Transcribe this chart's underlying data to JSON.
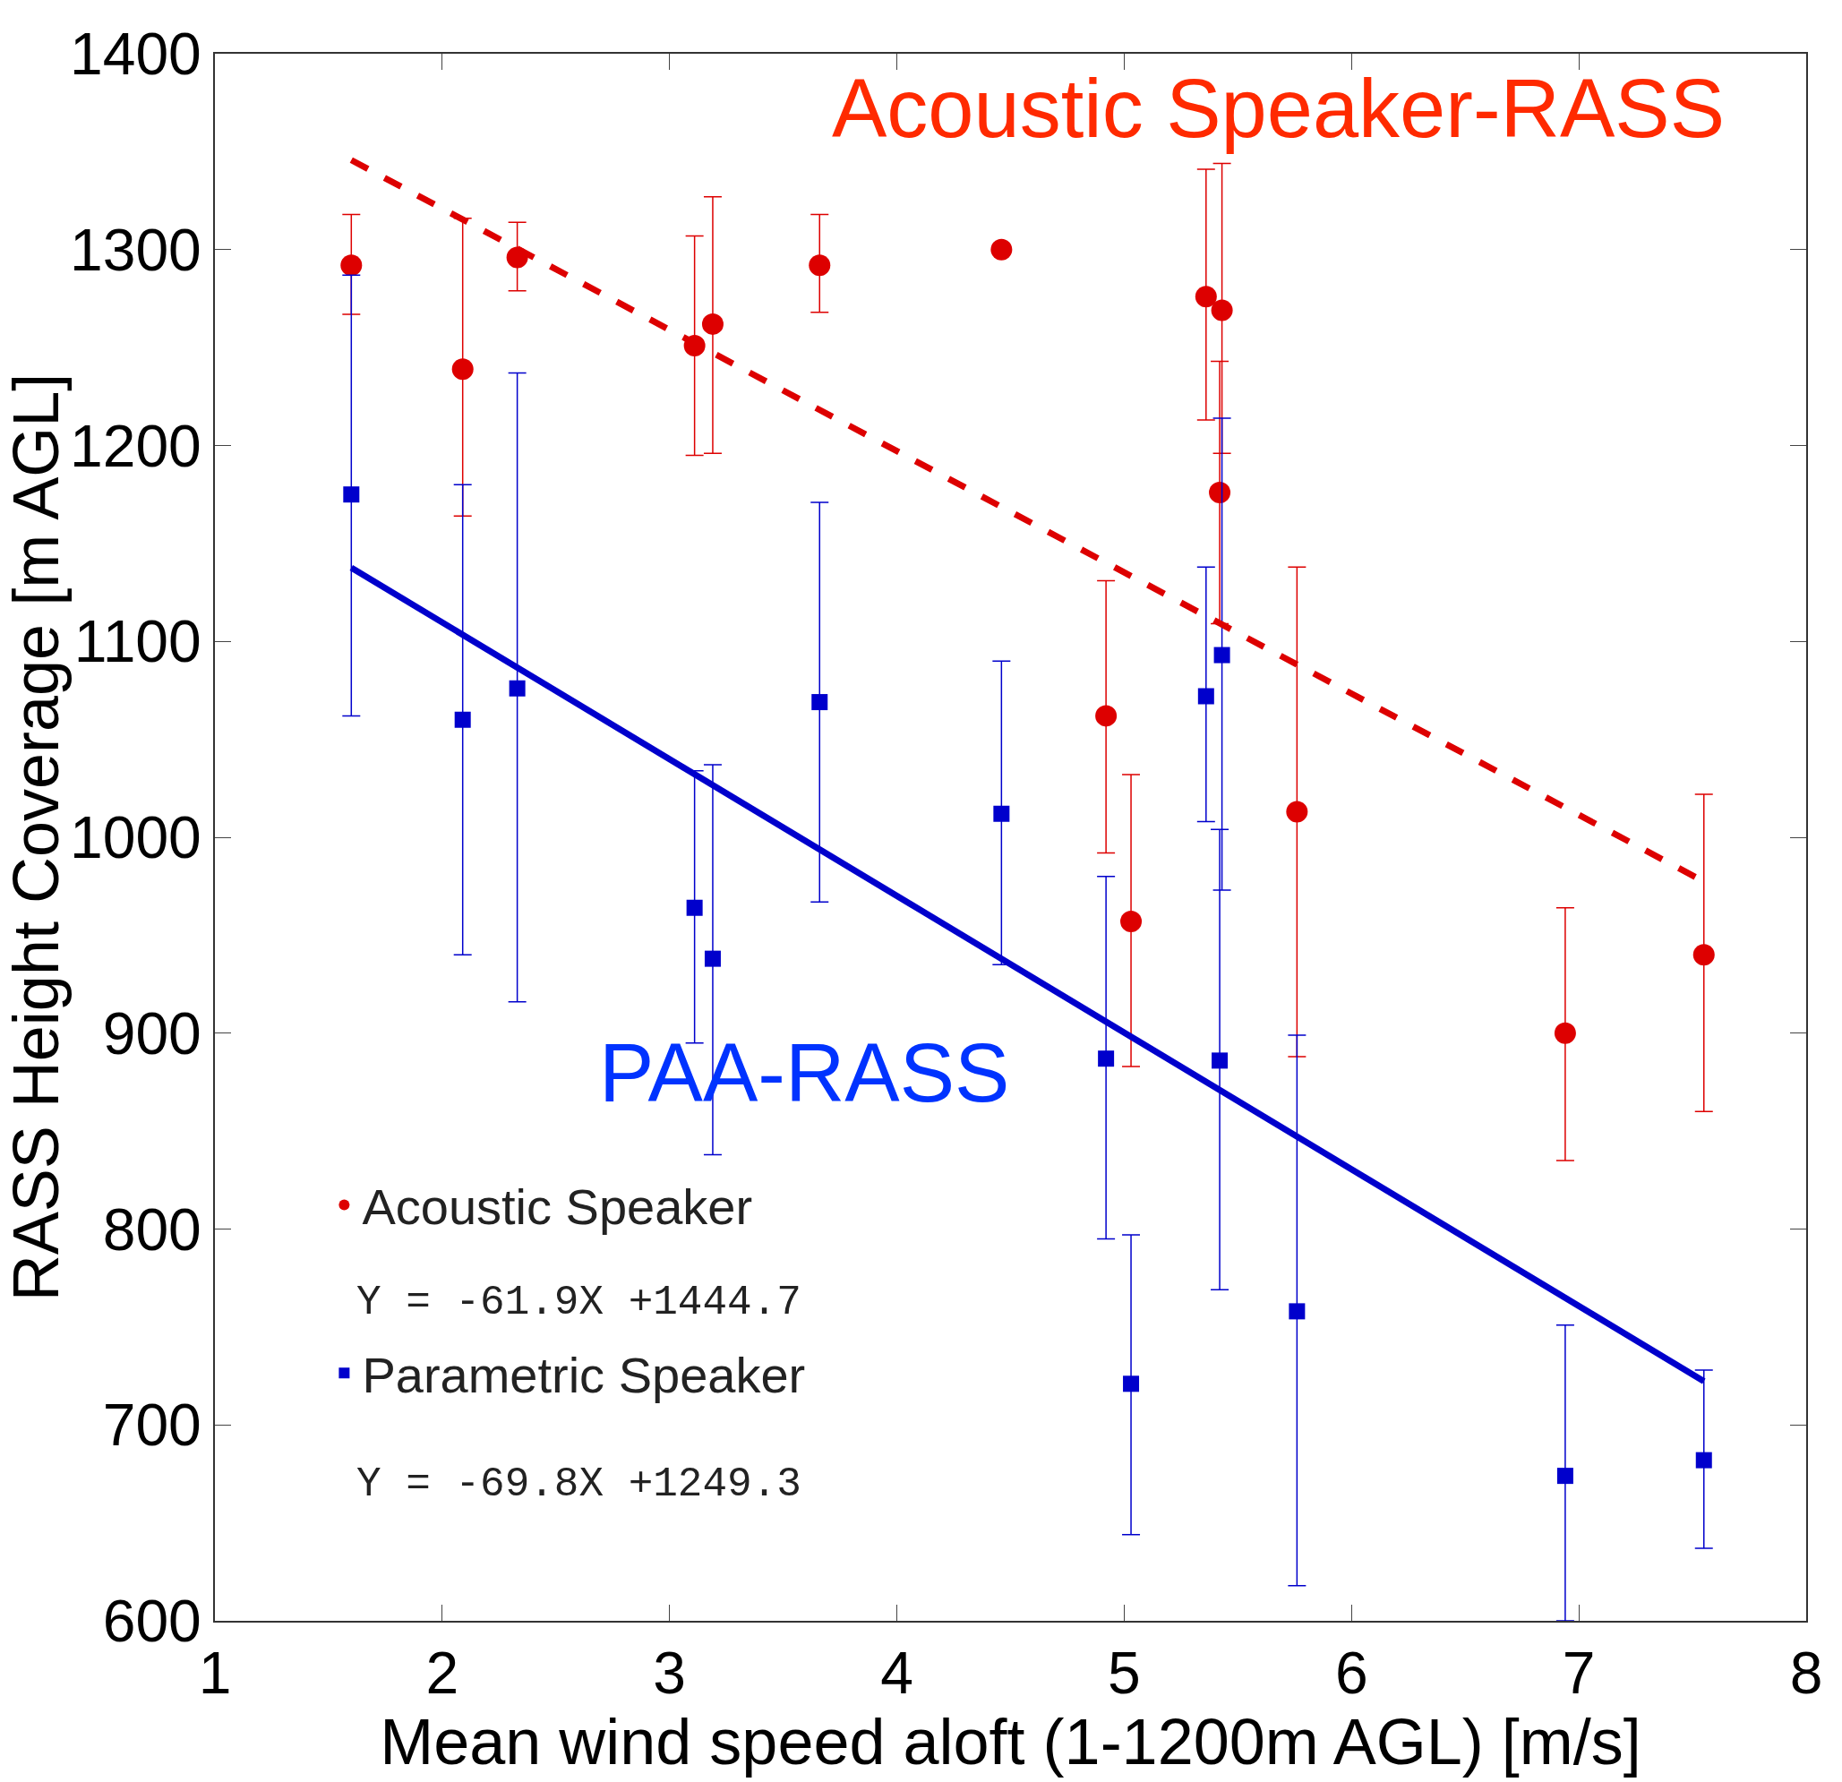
{
  "chart_data": {
    "type": "scatter",
    "xlabel": "Mean wind speed aloft (1-1200m AGL) [m/s]",
    "ylabel": "RASS Height Coverage [m AGL]",
    "xlim": [
      1,
      8
    ],
    "xticks": [
      1,
      2,
      3,
      4,
      5,
      6,
      7,
      8
    ],
    "ylim": [
      600,
      1400
    ],
    "yticks": [
      600,
      700,
      800,
      900,
      1000,
      1100,
      1200,
      1300,
      1400
    ],
    "legend": "bottom left",
    "annotations": [
      "Acoustic Speaker-RASS",
      "PAA-RASS",
      "Y = -61.9X +1444.7",
      "Y = -69.8X +1249.3"
    ],
    "series": [
      {
        "name": "Acoustic Speaker",
        "marker": "circle",
        "color": "#dd0000",
        "x": [
          1.6,
          2.09,
          2.33,
          3.11,
          3.19,
          3.66,
          4.46,
          4.92,
          5.03,
          5.36,
          5.42,
          5.43,
          5.76,
          6.94,
          7.55
        ],
        "values": [
          1292,
          1239,
          1296,
          1251,
          1262,
          1292,
          1300,
          1062,
          957,
          1276,
          1176,
          1269,
          1013,
          900,
          940
        ],
        "errors": [
          [
            1267,
            1318
          ],
          [
            1164,
            1316
          ],
          [
            1279,
            1314
          ],
          [
            1195,
            1307
          ],
          [
            1196,
            1327
          ],
          [
            1268,
            1318
          ],
          null,
          [
            992,
            1131
          ],
          [
            883,
            1032
          ],
          [
            1213,
            1341
          ],
          [
            1109,
            1243
          ],
          [
            1196,
            1344
          ],
          [
            888,
            1138
          ],
          [
            835,
            964
          ],
          [
            860,
            1022
          ]
        ]
      },
      {
        "name": "Parametric Speaker",
        "marker": "square",
        "color": "#0000cc",
        "x": [
          1.6,
          2.09,
          2.33,
          3.11,
          3.19,
          3.66,
          4.46,
          4.92,
          5.03,
          5.36,
          5.42,
          5.43,
          5.76,
          6.94,
          7.55
        ],
        "values": [
          1175,
          1060,
          1076,
          964,
          938,
          1069,
          1012,
          887,
          721,
          1072,
          886,
          1093,
          758,
          674,
          682
        ],
        "errors": [
          [
            1062,
            1287
          ],
          [
            940,
            1180
          ],
          [
            916,
            1237
          ],
          [
            895,
            1034
          ],
          [
            838,
            1037
          ],
          [
            967,
            1171
          ],
          [
            935,
            1090
          ],
          [
            795,
            980
          ],
          [
            644,
            797
          ],
          [
            1008,
            1138
          ],
          [
            769,
            1004
          ],
          [
            973,
            1214
          ],
          [
            618,
            899
          ],
          [
            600,
            751
          ],
          [
            637,
            728
          ]
        ]
      },
      {
        "type": "line",
        "line_style": "dashed",
        "color": "#dd0000",
        "x": [
          1.6,
          7.55
        ],
        "values": [
          1345.7,
          977.4
        ]
      },
      {
        "type": "line",
        "line_style": "solid",
        "color": "#0000cc",
        "x": [
          1.6,
          7.55
        ],
        "values": [
          1137.6,
          722.3
        ]
      }
    ]
  }
}
